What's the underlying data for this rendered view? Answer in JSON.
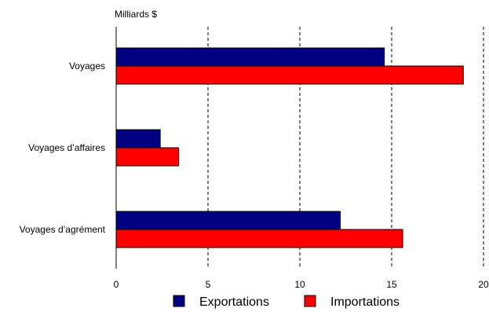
{
  "chart_data": {
    "type": "bar",
    "orientation": "horizontal",
    "unit_label": "Milliards $",
    "categories": [
      "Voyages",
      "Voyages d’affaires",
      "Voyages d’agrément"
    ],
    "series": [
      {
        "name": "Exportations",
        "color": "#000080",
        "values": [
          14.6,
          2.4,
          12.2
        ]
      },
      {
        "name": "Importations",
        "color": "#ff0000",
        "values": [
          18.9,
          3.4,
          15.6
        ]
      }
    ],
    "x_ticks": [
      0,
      5,
      10,
      15,
      20
    ],
    "xlim": [
      0,
      20
    ],
    "grid": "vertical dashed",
    "legend_position": "bottom"
  }
}
